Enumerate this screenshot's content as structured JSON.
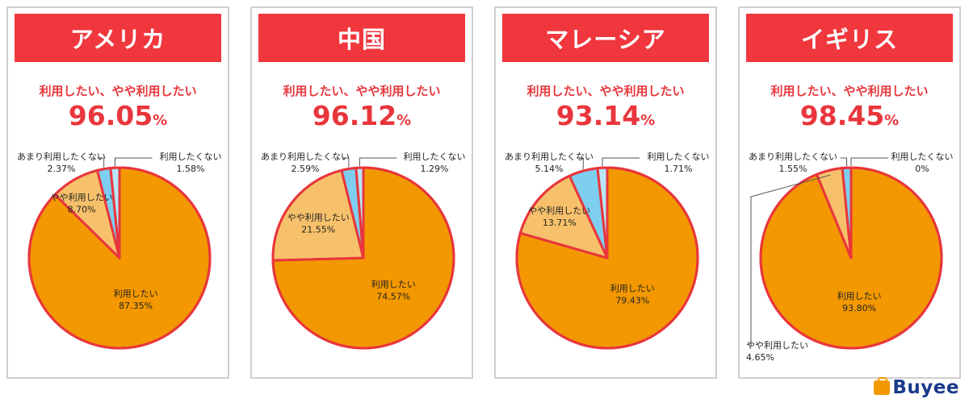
{
  "panels": [
    {
      "country": "アメリカ",
      "subtitle": "利用したい、やや利用したい",
      "total": "96.05",
      "unit": "%"
    },
    {
      "country": "中国",
      "subtitle": "利用したい、やや利用したい",
      "total": "96.12",
      "unit": "%"
    },
    {
      "country": "マレーシア",
      "subtitle": "利用したい、やや利用したい",
      "total": "93.14",
      "unit": "%"
    },
    {
      "country": "イギリス",
      "subtitle": "利用したい、やや利用したい",
      "total": "98.45",
      "unit": "%"
    }
  ],
  "logo": {
    "text": "Buyee"
  },
  "colors": {
    "header": "#f0373e",
    "accent_text": "#e8363c",
    "border": "#e8363c",
    "want": "#f39800",
    "somewhat_want": "#f7c16b",
    "somewhat_not": "#7ecef0",
    "not_want": "#b8e6f7"
  },
  "chart_data": [
    {
      "type": "pie",
      "title": "アメリカ",
      "slices": [
        {
          "label": "利用したい",
          "value": 87.35,
          "display": "87.35%"
        },
        {
          "label": "やや利用したい",
          "value": 8.7,
          "display": "8.70%"
        },
        {
          "label": "あまり利用したくない",
          "value": 2.37,
          "display": "2.37%"
        },
        {
          "label": "利用したくない",
          "value": 1.58,
          "display": "1.58%"
        }
      ]
    },
    {
      "type": "pie",
      "title": "中国",
      "slices": [
        {
          "label": "利用したい",
          "value": 74.57,
          "display": "74.57%"
        },
        {
          "label": "やや利用したい",
          "value": 21.55,
          "display": "21.55%"
        },
        {
          "label": "あまり利用したくない",
          "value": 2.59,
          "display": "2.59%"
        },
        {
          "label": "利用したくない",
          "value": 1.29,
          "display": "1.29%"
        }
      ]
    },
    {
      "type": "pie",
      "title": "マレーシア",
      "slices": [
        {
          "label": "利用したい",
          "value": 79.43,
          "display": "79.43%"
        },
        {
          "label": "やや利用したい",
          "value": 13.71,
          "display": "13.71%"
        },
        {
          "label": "あまり利用したくない",
          "value": 5.14,
          "display": "5.14%"
        },
        {
          "label": "利用したくない",
          "value": 1.71,
          "display": "1.71%"
        }
      ]
    },
    {
      "type": "pie",
      "title": "イギリス",
      "slices": [
        {
          "label": "利用したい",
          "value": 93.8,
          "display": "93.80%"
        },
        {
          "label": "やや利用したい",
          "value": 4.65,
          "display": "4.65%"
        },
        {
          "label": "あまり利用したくない",
          "value": 1.55,
          "display": "1.55%"
        },
        {
          "label": "利用したくない",
          "value": 0,
          "display": "0%"
        }
      ]
    }
  ]
}
